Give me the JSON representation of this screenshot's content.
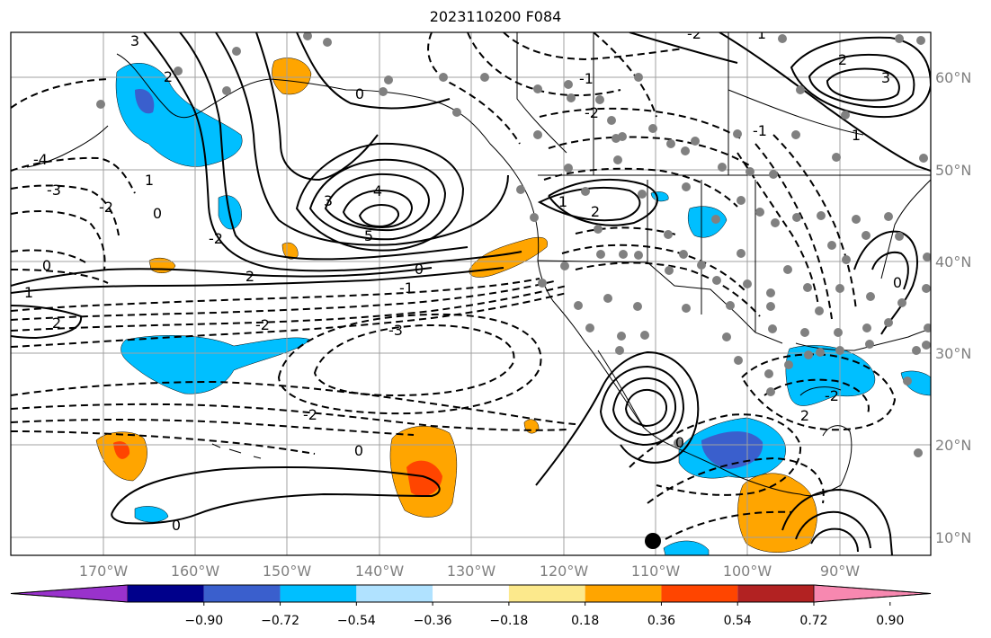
{
  "title": "2023110200 F084",
  "longitude_labels": [
    "170°W",
    "160°W",
    "150°W",
    "140°W",
    "130°W",
    "120°W",
    "110°W",
    "100°W",
    "90°W"
  ],
  "latitude_labels": [
    "60°N",
    "50°N",
    "40°N",
    "30°N",
    "20°N",
    "10°N"
  ],
  "colorbar": {
    "colors": [
      "#9932cc",
      "#00008b",
      "#3a5fcd",
      "#00bfff",
      "#b0e2ff",
      "#ffffff",
      "#fce98c",
      "#ffa500",
      "#ff4500",
      "#b22222",
      "#f788b0"
    ],
    "tick_labels": [
      "−0.90",
      "−0.72",
      "−0.54",
      "−0.36",
      "−0.18",
      "0.18",
      "0.36",
      "0.54",
      "0.72",
      "0.90"
    ]
  },
  "contour_labels": [
    "3",
    "1",
    "2",
    "0",
    "-1",
    "-2",
    "4",
    "-3",
    "-4",
    "5",
    "-2",
    "0",
    "1",
    "2",
    "-1",
    "-2",
    "3",
    "-2",
    "-3",
    "-2",
    "0",
    "0",
    "0",
    "2",
    "0",
    "2",
    "1",
    "1",
    "0",
    "-2",
    "2",
    "0",
    "-1",
    "-2",
    "3",
    "1",
    "2"
  ]
}
